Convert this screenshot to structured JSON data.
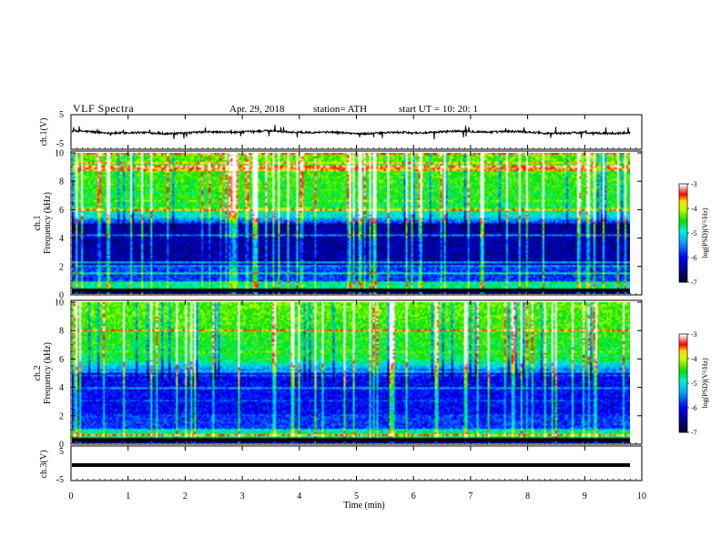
{
  "header": {
    "title": "VLF  Spectra",
    "date": "Apr. 29, 2018",
    "station": "station= ATH",
    "start": "start  UT  =    10: 20: 1"
  },
  "chart_data": {
    "type": "heatmap",
    "x_label": "Time  (min)",
    "x_range": [
      0,
      10
    ],
    "x_ticks": [
      "0",
      "1",
      "2",
      "3",
      "4",
      "5",
      "6",
      "7",
      "8",
      "9",
      "10"
    ],
    "data_end_min": 9.8,
    "panels": [
      {
        "id": "ch1-waveform",
        "type": "line",
        "ylabel": "ch.1(V)",
        "y_range": [
          -5,
          5
        ],
        "y_ticks": [
          "5",
          "-5"
        ],
        "baseline": -0.1,
        "noise": 0.6
      },
      {
        "id": "ch1-spectrogram",
        "type": "heatmap",
        "ylabel_top": "ch.1",
        "ylabel": "Frequency  (kHz)",
        "y_range": [
          0,
          10
        ],
        "y_ticks": [
          "0",
          "2",
          "4",
          "6",
          "8",
          "10"
        ]
      },
      {
        "id": "ch2-spectrogram",
        "type": "heatmap",
        "ylabel_top": "ch.2",
        "ylabel": "Frequency  (kHz)",
        "y_range": [
          0,
          10
        ],
        "y_ticks": [
          "0",
          "2",
          "4",
          "6",
          "8",
          "10"
        ]
      },
      {
        "id": "ch3-waveform",
        "type": "line",
        "ylabel": "ch.3(V)",
        "y_range": [
          -5,
          5
        ],
        "y_ticks": [
          "5",
          "-5"
        ],
        "baseline": 0.0,
        "noise": 0.0
      }
    ],
    "colorbar": {
      "label": "log(PSD)(V²/Hz)",
      "range": [
        -7,
        -3
      ],
      "ticks": [
        "-3",
        "-4",
        "-5",
        "-6",
        "-7"
      ]
    },
    "colors": {
      "darkblue": "#000066",
      "blue": "#0000ff",
      "cyan": "#00c8ff",
      "green": "#00e000",
      "yellow": "#ffff00",
      "red": "#ff0000",
      "white": "#ffffff"
    }
  }
}
